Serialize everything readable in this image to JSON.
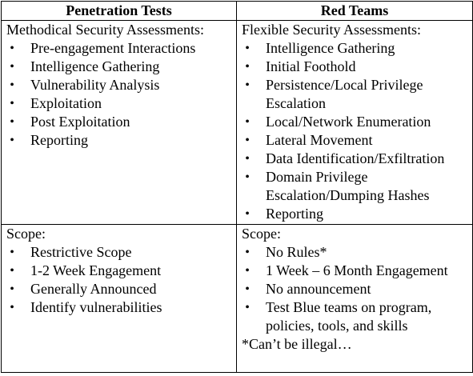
{
  "table": {
    "headers": [
      "Penetration Tests",
      "Red Teams"
    ],
    "rows": [
      {
        "left": {
          "heading": "Methodical Security Assessments:",
          "items": [
            "Pre-engagement Interactions",
            "Intelligence Gathering",
            "Vulnerability Analysis",
            "Exploitation",
            "Post Exploitation",
            "Reporting"
          ]
        },
        "right": {
          "heading": "Flexible Security Assessments:",
          "items": [
            "Intelligence Gathering",
            "Initial Foothold",
            "Persistence/Local Privilege Escalation",
            "Local/Network Enumeration",
            "Lateral Movement",
            "Data Identification/Exfiltration",
            "Domain Privilege Escalation/Dumping Hashes",
            "Reporting"
          ]
        }
      },
      {
        "left": {
          "heading": "Scope:",
          "items": [
            "Restrictive Scope",
            "1-2 Week Engagement",
            "Generally Announced",
            "Identify vulnerabilities"
          ]
        },
        "right": {
          "heading": "Scope:",
          "items": [
            "No Rules*",
            "1 Week – 6 Month Engagement",
            "No announcement",
            "Test Blue teams on program, policies, tools, and skills"
          ],
          "footnote": "*Can’t be illegal…"
        }
      }
    ]
  }
}
